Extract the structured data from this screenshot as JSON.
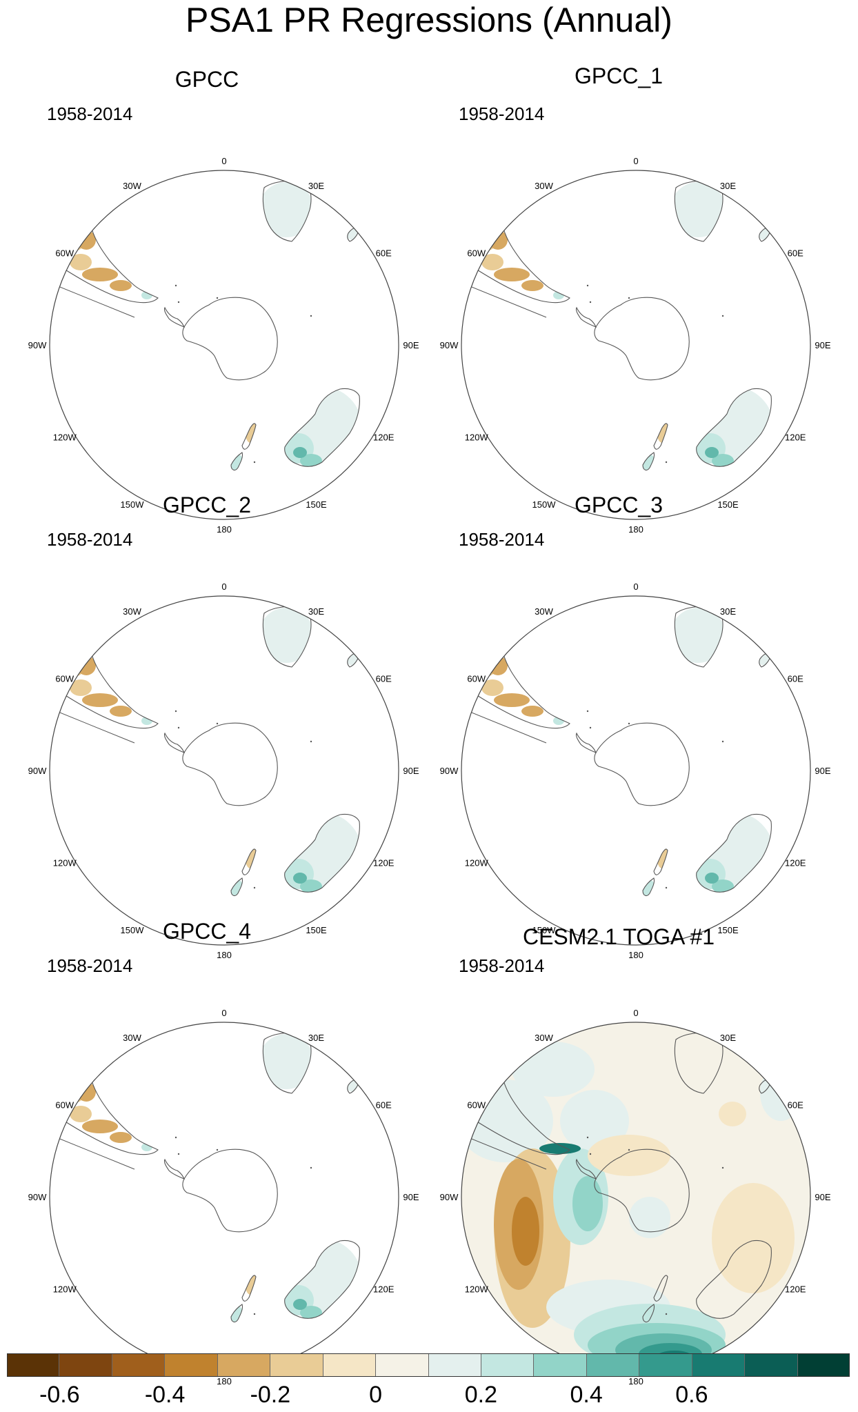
{
  "figure": {
    "title": "PSA1 PR Regressions (Annual)"
  },
  "panels": [
    {
      "title": "GPCC",
      "period": "1958-2014",
      "field": "gpcc"
    },
    {
      "title": "GPCC_1",
      "period": "1958-2014",
      "field": "gpcc"
    },
    {
      "title": "GPCC_2",
      "period": "1958-2014",
      "field": "gpcc"
    },
    {
      "title": "GPCC_3",
      "period": "1958-2014",
      "field": "gpcc"
    },
    {
      "title": "GPCC_4",
      "period": "1958-2014",
      "field": "gpcc"
    },
    {
      "title": "CESM2.1 TOGA #1",
      "period": "1958-2014",
      "field": "model"
    }
  ],
  "longitude_labels": [
    "0",
    "30E",
    "60E",
    "90E",
    "120E",
    "150E",
    "180",
    "150W",
    "120W",
    "90W",
    "60W",
    "30W"
  ],
  "colorbar": {
    "colors": [
      "#5b3306",
      "#7e4510",
      "#a05f1c",
      "#c0822e",
      "#d7a861",
      "#e9cc96",
      "#f5e6c6",
      "#f5f2e7",
      "#e4f0ee",
      "#c3e7e1",
      "#92d4c8",
      "#62b8ab",
      "#349a8d",
      "#187b71",
      "#0b5e55",
      "#013f34"
    ],
    "tick_values": [
      "-0.6",
      "-0.4",
      "-0.2",
      "0",
      "0.2",
      "0.4",
      "0.6"
    ],
    "tick_positions": [
      1,
      3,
      5,
      7,
      9,
      11,
      13
    ]
  }
}
